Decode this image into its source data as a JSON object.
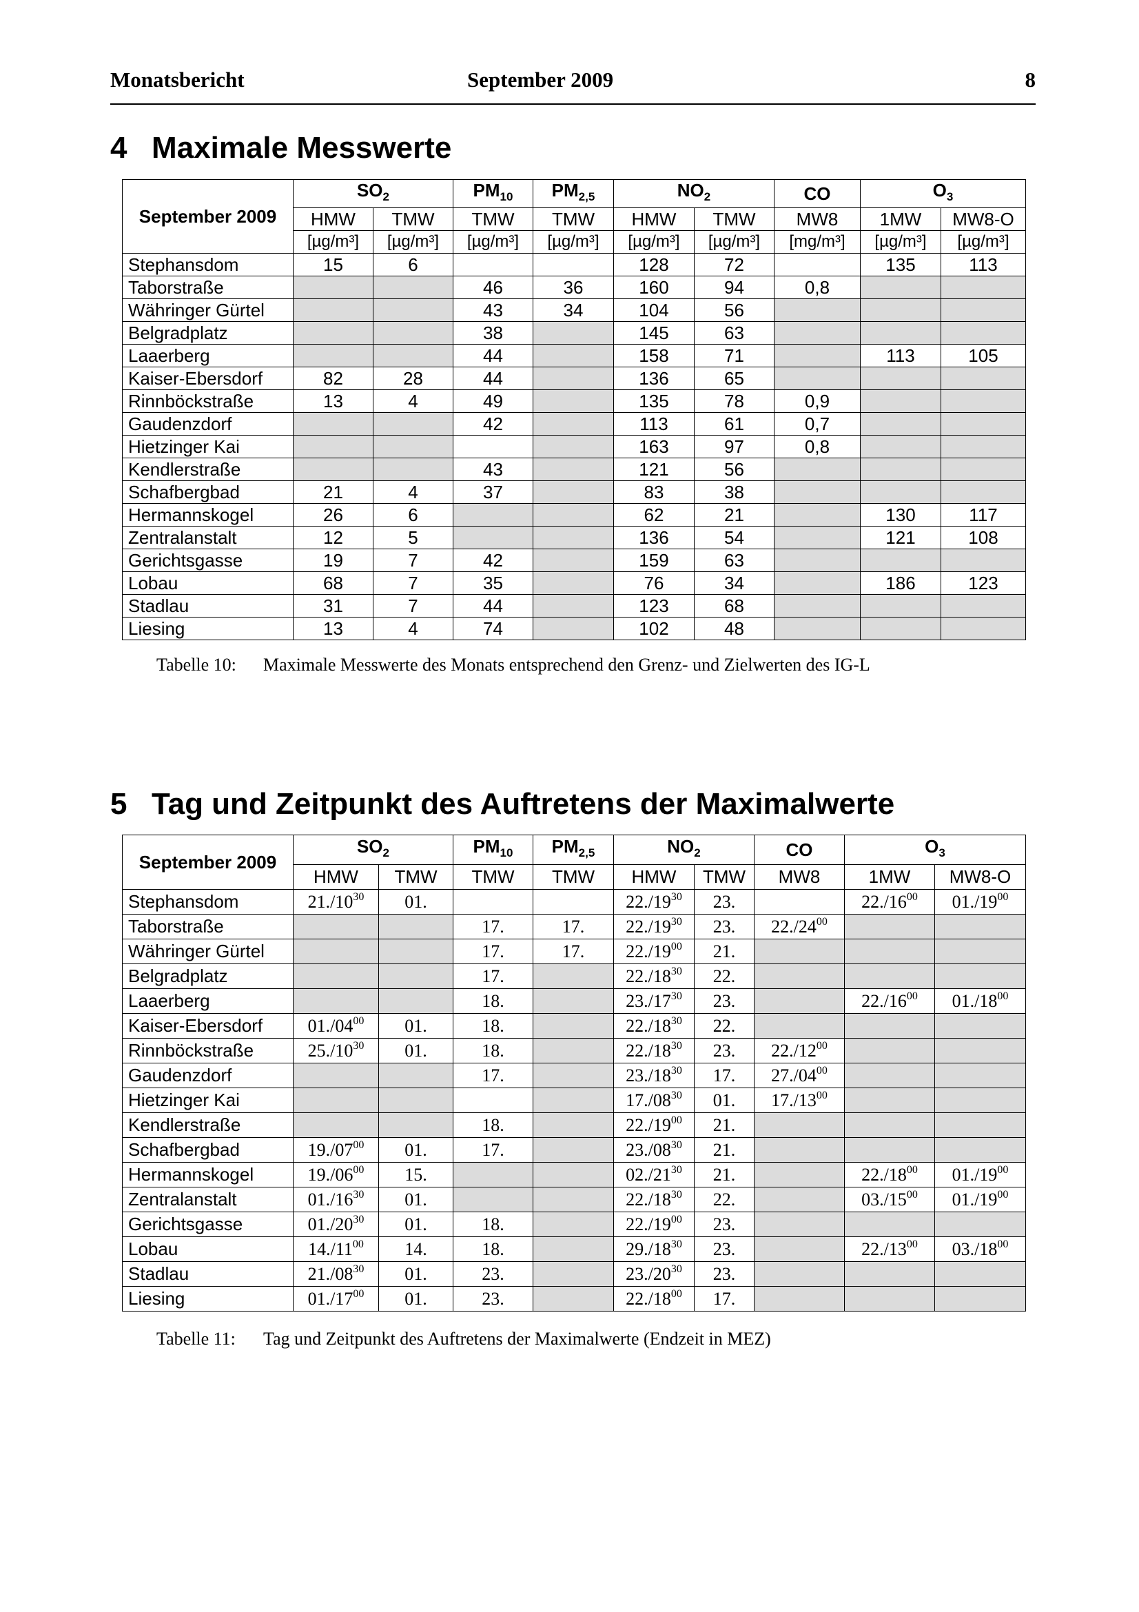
{
  "header": {
    "left": "Monatsbericht",
    "center": "September 2009",
    "page": "8"
  },
  "section4": {
    "number": "4",
    "title": "Maximale Messwerte"
  },
  "table1": {
    "corner": "September 2009",
    "groups": [
      {
        "label": {
          "text": "SO",
          "sub": "2"
        },
        "columns": [
          {
            "name": "HMW",
            "unit": "[µg/m³]"
          },
          {
            "name": "TMW",
            "unit": "[µg/m³]"
          }
        ]
      },
      {
        "label": {
          "text": "PM",
          "sub": "10"
        },
        "columns": [
          {
            "name": "TMW",
            "unit": "[µg/m³]"
          }
        ]
      },
      {
        "label": {
          "text": "PM",
          "sub": "2,5"
        },
        "columns": [
          {
            "name": "TMW",
            "unit": "[µg/m³]"
          }
        ]
      },
      {
        "label": {
          "text": "NO",
          "sub": "2"
        },
        "columns": [
          {
            "name": "HMW",
            "unit": "[µg/m³]"
          },
          {
            "name": "TMW",
            "unit": "[µg/m³]"
          }
        ]
      },
      {
        "label": {
          "text": "CO"
        },
        "columns": [
          {
            "name": "MW8",
            "unit": "[mg/m³]"
          }
        ]
      },
      {
        "label": {
          "text": "O",
          "sub": "3"
        },
        "columns": [
          {
            "name": "1MW",
            "unit": "[µg/m³]"
          },
          {
            "name": "MW8-O",
            "unit": "[µg/m³]"
          }
        ]
      }
    ],
    "rows": [
      {
        "station": "Stephansdom",
        "values": [
          15,
          6,
          null,
          null,
          128,
          72,
          null,
          135,
          113
        ]
      },
      {
        "station": "Taborstraße",
        "values": [
          null,
          null,
          46,
          36,
          160,
          94,
          "0,8",
          null,
          null
        ]
      },
      {
        "station": "Währinger Gürtel",
        "values": [
          null,
          null,
          43,
          34,
          104,
          56,
          null,
          null,
          null
        ]
      },
      {
        "station": "Belgradplatz",
        "values": [
          null,
          null,
          38,
          null,
          145,
          63,
          null,
          null,
          null
        ]
      },
      {
        "station": "Laaerberg",
        "values": [
          null,
          null,
          44,
          null,
          158,
          71,
          null,
          113,
          105
        ]
      },
      {
        "station": "Kaiser-Ebersdorf",
        "values": [
          82,
          28,
          44,
          null,
          136,
          65,
          null,
          null,
          null
        ]
      },
      {
        "station": "Rinnböckstraße",
        "values": [
          13,
          4,
          49,
          null,
          135,
          78,
          "0,9",
          null,
          null
        ]
      },
      {
        "station": "Gaudenzdorf",
        "values": [
          null,
          null,
          42,
          null,
          113,
          61,
          "0,7",
          null,
          null
        ]
      },
      {
        "station": "Hietzinger Kai",
        "values": [
          null,
          null,
          null,
          null,
          163,
          97,
          "0,8",
          null,
          null
        ]
      },
      {
        "station": "Kendlerstraße",
        "values": [
          null,
          null,
          43,
          null,
          121,
          56,
          null,
          null,
          null
        ]
      },
      {
        "station": "Schafbergbad",
        "values": [
          21,
          4,
          37,
          null,
          83,
          38,
          null,
          null,
          null
        ]
      },
      {
        "station": "Hermannskogel",
        "values": [
          26,
          6,
          null,
          null,
          62,
          21,
          null,
          130,
          117
        ]
      },
      {
        "station": "Zentralanstalt",
        "values": [
          12,
          5,
          null,
          null,
          136,
          54,
          null,
          121,
          108
        ]
      },
      {
        "station": "Gerichtsgasse",
        "values": [
          19,
          7,
          42,
          null,
          159,
          63,
          null,
          null,
          null
        ]
      },
      {
        "station": "Lobau",
        "values": [
          68,
          7,
          35,
          null,
          76,
          34,
          null,
          186,
          123
        ]
      },
      {
        "station": "Stadlau",
        "values": [
          31,
          7,
          44,
          null,
          123,
          68,
          null,
          null,
          null
        ]
      },
      {
        "station": "Liesing",
        "values": [
          13,
          4,
          74,
          null,
          102,
          48,
          null,
          null,
          null
        ]
      }
    ],
    "caption": {
      "label": "Tabelle 10:",
      "text": "Maximale Messwerte des Monats entsprechend den Grenz- und Zielwerten des IG-L"
    }
  },
  "section5": {
    "number": "5",
    "title": "Tag und Zeitpunkt des Auftretens der Maximalwerte"
  },
  "table2": {
    "corner": "September 2009",
    "groups": [
      {
        "label": {
          "text": "SO",
          "sub": "2"
        },
        "columns": [
          {
            "name": "HMW"
          },
          {
            "name": "TMW"
          }
        ]
      },
      {
        "label": {
          "text": "PM",
          "sub": "10"
        },
        "columns": [
          {
            "name": "TMW"
          }
        ]
      },
      {
        "label": {
          "text": "PM",
          "sub": "2,5"
        },
        "columns": [
          {
            "name": "TMW"
          }
        ]
      },
      {
        "label": {
          "text": "NO",
          "sub": "2"
        },
        "columns": [
          {
            "name": "HMW"
          },
          {
            "name": "TMW"
          }
        ]
      },
      {
        "label": {
          "text": "CO"
        },
        "columns": [
          {
            "name": "MW8"
          }
        ]
      },
      {
        "label": {
          "text": "O",
          "sub": "3"
        },
        "columns": [
          {
            "name": "1MW"
          },
          {
            "name": "MW8-O"
          }
        ]
      }
    ],
    "rows": [
      {
        "station": "Stephansdom",
        "values": [
          {
            "date": "21./10",
            "time": "30"
          },
          "01.",
          null,
          null,
          {
            "date": "22./19",
            "time": "30"
          },
          "23.",
          null,
          {
            "date": "22./16",
            "time": "00"
          },
          {
            "date": "01./19",
            "time": "00"
          }
        ]
      },
      {
        "station": "Taborstraße",
        "values": [
          null,
          null,
          "17.",
          "17.",
          {
            "date": "22./19",
            "time": "30"
          },
          "23.",
          {
            "date": "22./24",
            "time": "00"
          },
          null,
          null
        ]
      },
      {
        "station": "Währinger Gürtel",
        "values": [
          null,
          null,
          "17.",
          "17.",
          {
            "date": "22./19",
            "time": "00"
          },
          "21.",
          null,
          null,
          null
        ]
      },
      {
        "station": "Belgradplatz",
        "values": [
          null,
          null,
          "17.",
          null,
          {
            "date": "22./18",
            "time": "30"
          },
          "22.",
          null,
          null,
          null
        ]
      },
      {
        "station": "Laaerberg",
        "values": [
          null,
          null,
          "18.",
          null,
          {
            "date": "23./17",
            "time": "30"
          },
          "23.",
          null,
          {
            "date": "22./16",
            "time": "00"
          },
          {
            "date": "01./18",
            "time": "00"
          }
        ]
      },
      {
        "station": "Kaiser-Ebersdorf",
        "values": [
          {
            "date": "01./04",
            "time": "00"
          },
          "01.",
          "18.",
          null,
          {
            "date": "22./18",
            "time": "30"
          },
          "22.",
          null,
          null,
          null
        ]
      },
      {
        "station": "Rinnböckstraße",
        "values": [
          {
            "date": "25./10",
            "time": "30"
          },
          "01.",
          "18.",
          null,
          {
            "date": "22./18",
            "time": "30"
          },
          "23.",
          {
            "date": "22./12",
            "time": "00"
          },
          null,
          null
        ]
      },
      {
        "station": "Gaudenzdorf",
        "values": [
          null,
          null,
          "17.",
          null,
          {
            "date": "23./18",
            "time": "30"
          },
          "17.",
          {
            "date": "27./04",
            "time": "00"
          },
          null,
          null
        ]
      },
      {
        "station": "Hietzinger Kai",
        "values": [
          null,
          null,
          null,
          null,
          {
            "date": "17./08",
            "time": "30"
          },
          "01.",
          {
            "date": "17./13",
            "time": "00"
          },
          null,
          null
        ]
      },
      {
        "station": "Kendlerstraße",
        "values": [
          null,
          null,
          "18.",
          null,
          {
            "date": "22./19",
            "time": "00"
          },
          "21.",
          null,
          null,
          null
        ]
      },
      {
        "station": "Schafbergbad",
        "values": [
          {
            "date": "19./07",
            "time": "00"
          },
          "01.",
          "17.",
          null,
          {
            "date": "23./08",
            "time": "30"
          },
          "21.",
          null,
          null,
          null
        ]
      },
      {
        "station": "Hermannskogel",
        "values": [
          {
            "date": "19./06",
            "time": "00"
          },
          "15.",
          null,
          null,
          {
            "date": "02./21",
            "time": "30"
          },
          "21.",
          null,
          {
            "date": "22./18",
            "time": "00"
          },
          {
            "date": "01./19",
            "time": "00"
          }
        ]
      },
      {
        "station": "Zentralanstalt",
        "values": [
          {
            "date": "01./16",
            "time": "30"
          },
          "01.",
          null,
          null,
          {
            "date": "22./18",
            "time": "30"
          },
          "22.",
          null,
          {
            "date": "03./15",
            "time": "00"
          },
          {
            "date": "01./19",
            "time": "00"
          }
        ]
      },
      {
        "station": "Gerichtsgasse",
        "values": [
          {
            "date": "01./20",
            "time": "30"
          },
          "01.",
          "18.",
          null,
          {
            "date": "22./19",
            "time": "00"
          },
          "23.",
          null,
          null,
          null
        ]
      },
      {
        "station": "Lobau",
        "values": [
          {
            "date": "14./11",
            "time": "00"
          },
          "14.",
          "18.",
          null,
          {
            "date": "29./18",
            "time": "30"
          },
          "23.",
          null,
          {
            "date": "22./13",
            "time": "00"
          },
          {
            "date": "03./18",
            "time": "00"
          }
        ]
      },
      {
        "station": "Stadlau",
        "values": [
          {
            "date": "21./08",
            "time": "30"
          },
          "01.",
          "23.",
          null,
          {
            "date": "23./20",
            "time": "30"
          },
          "23.",
          null,
          null,
          null
        ]
      },
      {
        "station": "Liesing",
        "values": [
          {
            "date": "01./17",
            "time": "00"
          },
          "01.",
          "23.",
          null,
          {
            "date": "22./18",
            "time": "00"
          },
          "17.",
          null,
          null,
          null
        ]
      }
    ],
    "caption": {
      "label": "Tabelle 11:",
      "text": "Tag und Zeitpunkt des Auftretens der Maximalwerte (Endzeit in MEZ)"
    }
  }
}
